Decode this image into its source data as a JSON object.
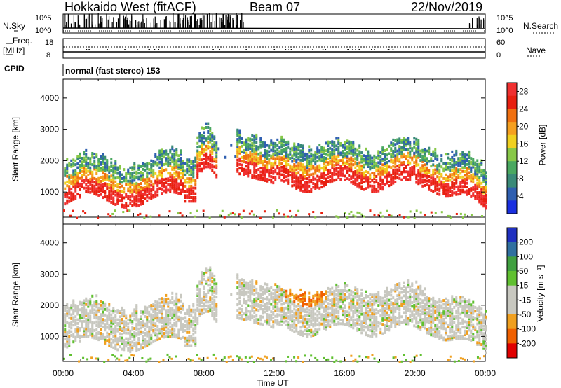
{
  "header": {
    "station": "Hokkaido West (fitACF)",
    "beam": "Beam 07",
    "date": "22/Nov/2019"
  },
  "left_labels": {
    "nsky": "N.Sky",
    "freq": "Freq.",
    "freq_unit": "[MHz]",
    "cpid": "CPID"
  },
  "right_labels": {
    "nsearch": "N.Search",
    "nave": "Nave"
  },
  "noise_ticks": {
    "top": "10^5",
    "bottom": "10^0"
  },
  "freq_ticks": {
    "top": "18",
    "bottom": "8"
  },
  "nave_ticks": {
    "top": "60",
    "bottom": "0"
  },
  "cpid_text": "normal (fast stereo) 153",
  "colors": {
    "power_scale": [
      "#1a2fe0",
      "#2f5fb0",
      "#3a8a78",
      "#4aa860",
      "#88c848",
      "#f0d020",
      "#f5a020",
      "#f07010",
      "#e82010",
      "#f03030"
    ],
    "velocity_scale": [
      "#e00000",
      "#f06000",
      "#f0a020",
      "#c8c8c0",
      "#c8c8c0",
      "#60c030",
      "#40a040",
      "#3070a0",
      "#2030c0"
    ]
  },
  "chart_data": [
    {
      "type": "heatmap",
      "title": "",
      "ylabel": "Slant Range [km]",
      "xlabel": "",
      "x_ticks": [
        "00:00",
        "04:00",
        "08:00",
        "12:00",
        "16:00",
        "20:00",
        "00:00"
      ],
      "y_ticks": [
        "1000",
        "2000",
        "3000",
        "4000"
      ],
      "ylim": [
        200,
        4600
      ],
      "colorbar_label": "Power [dB]",
      "colorbar_ticks": [
        "4",
        "8",
        "12",
        "16",
        "20",
        "24",
        "28"
      ],
      "colorbar_range": [
        0,
        30
      ]
    },
    {
      "type": "heatmap",
      "title": "",
      "ylabel": "Slant Range [km]",
      "xlabel": "Time UT",
      "x_ticks": [
        "00:00",
        "04:00",
        "08:00",
        "12:00",
        "16:00",
        "20:00",
        "00:00"
      ],
      "y_ticks": [
        "1000",
        "2000",
        "3000",
        "4000"
      ],
      "ylim": [
        200,
        4600
      ],
      "colorbar_label": "Velocity [m s⁻¹]",
      "colorbar_ticks": [
        "200",
        "100",
        "50",
        "15",
        "-15",
        "-50",
        "-100",
        "-200"
      ],
      "colorbar_range": [
        -250,
        250
      ]
    }
  ]
}
